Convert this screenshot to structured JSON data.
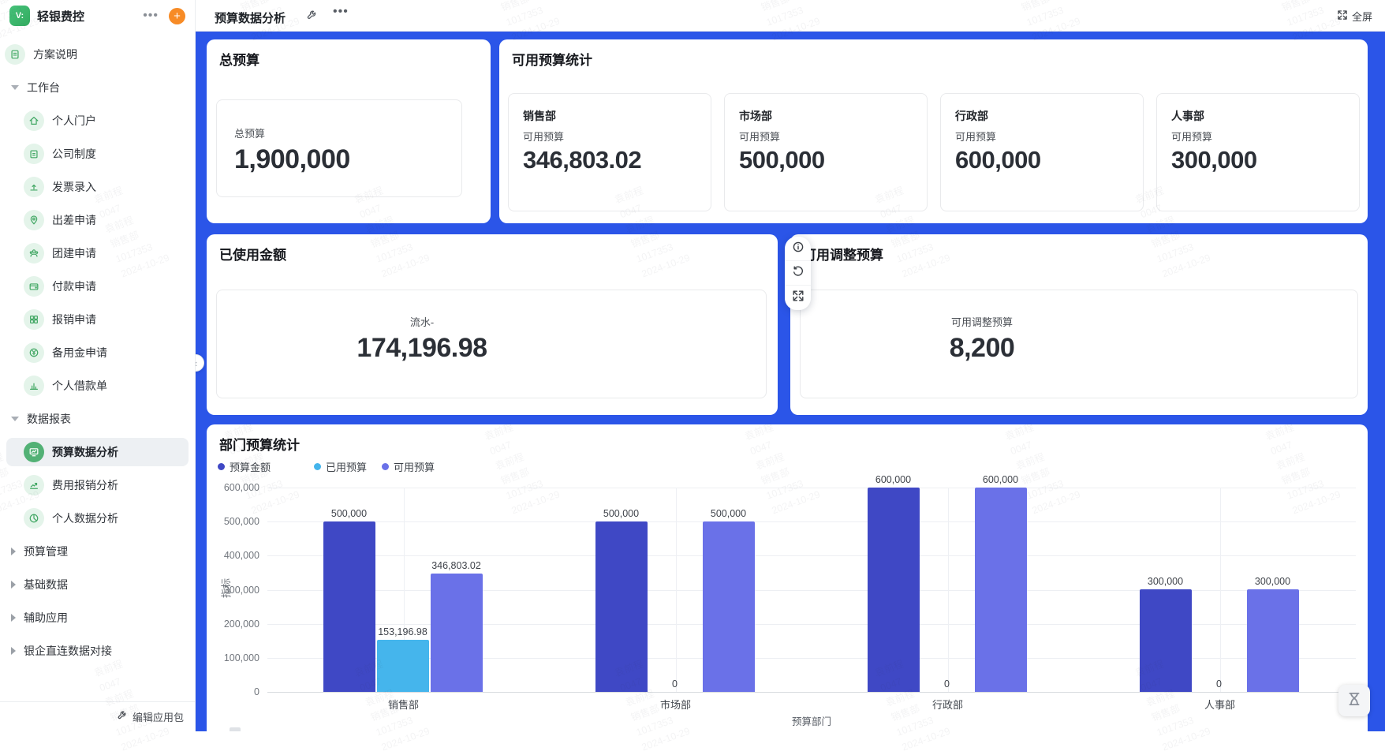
{
  "app": {
    "name": "轻银费控"
  },
  "topbar": {
    "title": "预算数据分析",
    "fullscreen_label": "全屏"
  },
  "sidebar": {
    "standalone": {
      "label": "方案说明",
      "icon": "doc"
    },
    "sections": [
      {
        "label": "工作台",
        "expanded": true,
        "items": [
          {
            "label": "个人门户",
            "icon": "home"
          },
          {
            "label": "公司制度",
            "icon": "clipboard"
          },
          {
            "label": "发票录入",
            "icon": "upload"
          },
          {
            "label": "出差申请",
            "icon": "pin"
          },
          {
            "label": "团建申请",
            "icon": "people"
          },
          {
            "label": "付款申请",
            "icon": "wallet"
          },
          {
            "label": "报销申请",
            "icon": "receipt"
          },
          {
            "label": "备用金申请",
            "icon": "yen"
          },
          {
            "label": "个人借款单",
            "icon": "chart-bars"
          }
        ]
      },
      {
        "label": "数据报表",
        "expanded": true,
        "items": [
          {
            "label": "预算数据分析",
            "icon": "monitor",
            "selected": true
          },
          {
            "label": "费用报销分析",
            "icon": "trend"
          },
          {
            "label": "个人数据分析",
            "icon": "pie"
          }
        ]
      },
      {
        "label": "预算管理",
        "expanded": false,
        "items": []
      },
      {
        "label": "基础数据",
        "expanded": false,
        "items": []
      },
      {
        "label": "辅助应用",
        "expanded": false,
        "items": []
      },
      {
        "label": "银企直连数据对接",
        "expanded": false,
        "items": []
      }
    ],
    "footer_label": "编辑应用包"
  },
  "cards": {
    "total_budget": {
      "title": "总预算",
      "stat": {
        "label": "总预算",
        "value": "1,900,000"
      }
    },
    "available_budget": {
      "title": "可用预算统计",
      "items": [
        {
          "dept": "销售部",
          "label": "可用预算",
          "value": "346,803.02"
        },
        {
          "dept": "市场部",
          "label": "可用预算",
          "value": "500,000"
        },
        {
          "dept": "行政部",
          "label": "可用预算",
          "value": "600,000"
        },
        {
          "dept": "人事部",
          "label": "可用预算",
          "value": "300,000"
        }
      ]
    },
    "used_amount": {
      "title": "已使用金额",
      "stat": {
        "label": "流水-",
        "value": "174,196.98"
      }
    },
    "adjustable_budget": {
      "title": "可用调整预算",
      "stat": {
        "label": "可用调整预算",
        "value": "8,200"
      }
    }
  },
  "chart_data": {
    "type": "bar",
    "title": "部门预算统计",
    "categories": [
      "销售部",
      "市场部",
      "行政部",
      "人事部"
    ],
    "series": [
      {
        "name": "预算金额",
        "color": "#3f48c5",
        "values": [
          500000,
          500000,
          600000,
          300000
        ],
        "labels": [
          "500,000",
          "500,000",
          "600,000",
          "300,000"
        ]
      },
      {
        "name": "已用预算",
        "color": "#45b5ec",
        "values": [
          153196.98,
          0,
          0,
          0
        ],
        "labels": [
          "153,196.98",
          "0",
          "0",
          "0"
        ]
      },
      {
        "name": "可用预算",
        "color": "#6a71e8",
        "values": [
          346803.02,
          500000,
          600000,
          300000
        ],
        "labels": [
          "346,803.02",
          "500,000",
          "600,000",
          "300,000"
        ]
      }
    ],
    "xlabel": "预算部门",
    "ylabel": "指标",
    "ylim": [
      0,
      600000
    ],
    "yticks": [
      "600,000",
      "500,000",
      "400,000",
      "300,000",
      "200,000",
      "100,000",
      "0"
    ],
    "grid": true,
    "legend_position": "top-left"
  },
  "watermark": {
    "lines": [
      "袁前程",
      "0047",
      "袁前程",
      "销售部",
      "1017353",
      "2024-10-29"
    ]
  },
  "colors": {
    "main_bg": "#2b55e8",
    "green": "#43a865",
    "orange": "#f78b26",
    "bar_budget": "#3f48c5",
    "bar_used": "#45b5ec",
    "bar_available": "#6a71e8"
  }
}
